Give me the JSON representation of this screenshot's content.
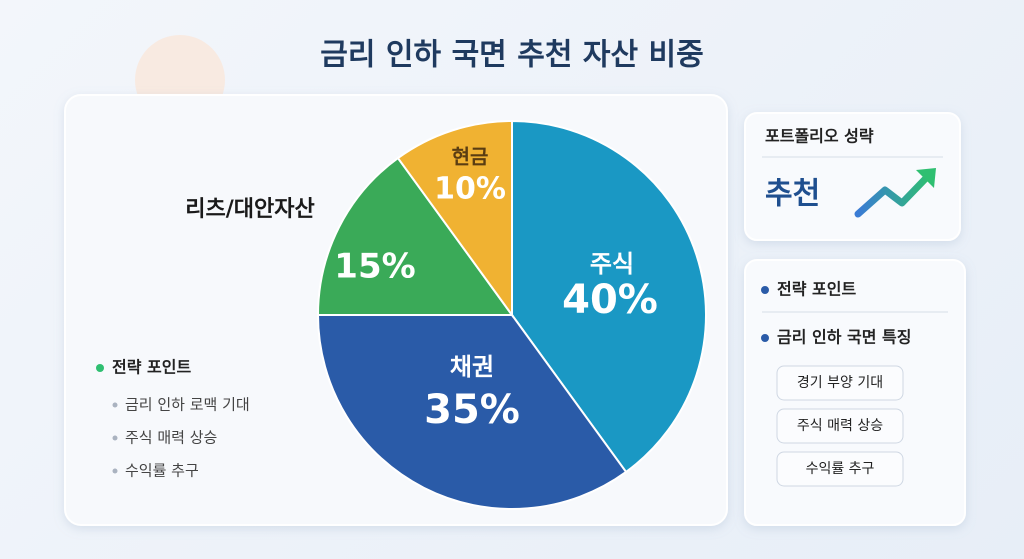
{
  "chart_data": {
    "type": "pie",
    "title": "금리 인하 국면 추천 자산 비중",
    "categories": [
      "주식",
      "채권",
      "리츠/대안자산",
      "현금"
    ],
    "values": [
      40,
      35,
      15,
      10
    ],
    "value_labels": [
      "40%",
      "35%",
      "15%",
      "10%"
    ],
    "colors": [
      "#1a98c4",
      "#2a5ba8",
      "#3aaa58",
      "#f0b232"
    ]
  },
  "left_notes": {
    "heading": "전략 포인트",
    "items": [
      "금리 인하 로맥 기대",
      "주식 매력 상승",
      "수익률 추구"
    ]
  },
  "side_panel": {
    "card_title": "포트폴리오 성략",
    "card_value": "추천",
    "heading": "전략 포인트",
    "subheading": "금리 인하 국면 특징",
    "pills": [
      "경기 부양 기대",
      "주식 매력 상승",
      "수익률 추구"
    ]
  }
}
